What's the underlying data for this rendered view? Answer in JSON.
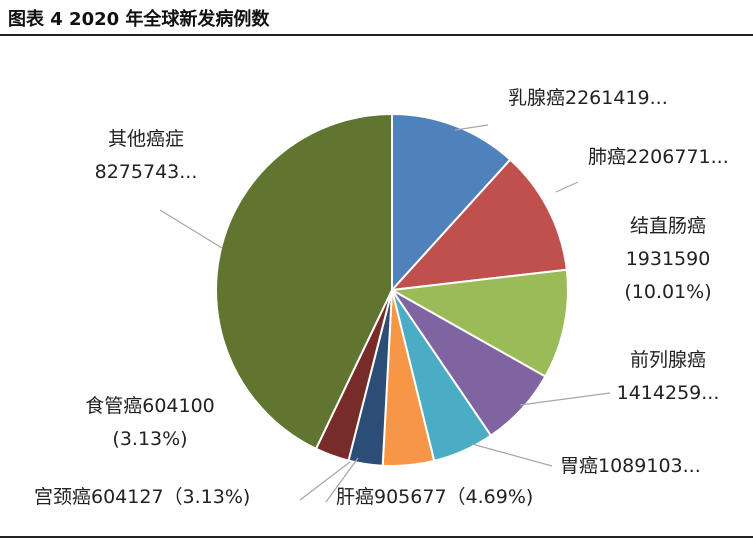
{
  "page": {
    "title": "图表 4 2020 年全球新发病例数"
  },
  "chart_data": {
    "type": "pie",
    "title": "",
    "start_angle_deg": 0,
    "direction": "clockwise",
    "slices": [
      {
        "label": "乳腺癌",
        "value": 2261419,
        "label_lines": [
          "乳腺癌2261419..."
        ],
        "color": "#4F81BD"
      },
      {
        "label": "肺癌",
        "value": 2206771,
        "label_lines": [
          "肺癌2206771..."
        ],
        "color": "#C0504D"
      },
      {
        "label": "结直肠癌",
        "value": 1931590,
        "label_lines": [
          "结直肠癌",
          "1931590",
          "(10.01%)"
        ],
        "color": "#9BBB59"
      },
      {
        "label": "前列腺癌",
        "value": 1414259,
        "label_lines": [
          "前列腺癌",
          "1414259..."
        ],
        "color": "#8064A2"
      },
      {
        "label": "胃癌",
        "value": 1089103,
        "label_lines": [
          "胃癌1089103..."
        ],
        "color": "#4BACC6"
      },
      {
        "label": "肝癌",
        "value": 905677,
        "label_lines": [
          "肝癌905677（4.69%)"
        ],
        "color": "#F79646"
      },
      {
        "label": "宫颈癌",
        "value": 604127,
        "label_lines": [
          "宫颈癌604127（3.13%)"
        ],
        "color": "#2C4D75"
      },
      {
        "label": "食管癌",
        "value": 604100,
        "label_lines": [
          "食管癌604100",
          "(3.13%)"
        ],
        "color": "#772C2A"
      },
      {
        "label": "其他癌症",
        "value": 8275743,
        "label_lines": [
          "其他癌症",
          "8275743..."
        ],
        "color": "#5F7530"
      }
    ]
  }
}
